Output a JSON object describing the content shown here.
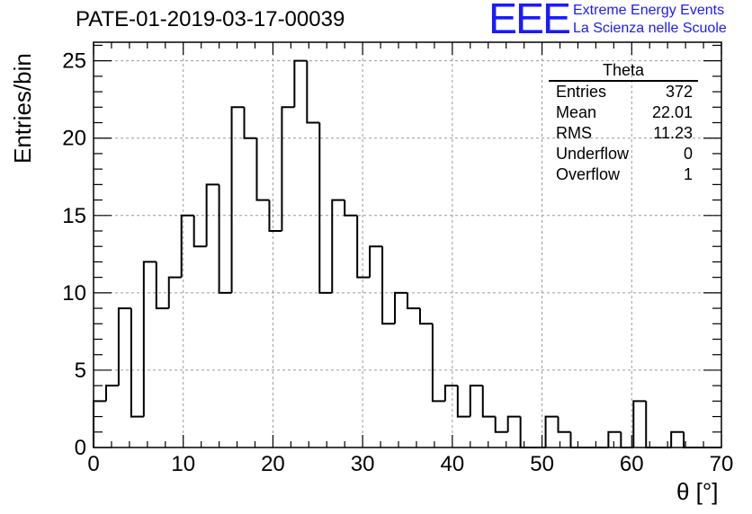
{
  "header": {
    "title": "PATE-01-2019-03-17-00039",
    "logo_mark": "EEE",
    "logo_line1": "Extreme Energy Events",
    "logo_line2": "La Scienza nelle Scuole"
  },
  "stats_box": {
    "title": "Theta",
    "rows": [
      {
        "label": "Entries",
        "value": "372"
      },
      {
        "label": "Mean",
        "value": "22.01"
      },
      {
        "label": "RMS",
        "value": "11.23"
      },
      {
        "label": "Underflow",
        "value": "0"
      },
      {
        "label": "Overflow",
        "value": "1"
      }
    ]
  },
  "chart_data": {
    "type": "bar",
    "style": "step-histogram",
    "title": "PATE-01-2019-03-17-00039",
    "xlabel": "θ [°]",
    "ylabel": "Entries/bin",
    "xlim": [
      0,
      70
    ],
    "ylim": [
      0,
      26.2
    ],
    "grid": true,
    "bin_width": 1.4,
    "bin_edges_start": 0,
    "values": [
      3,
      4,
      9,
      2,
      12,
      9,
      11,
      15,
      13,
      17,
      10,
      22,
      20,
      16,
      14,
      22,
      25,
      21,
      10,
      16,
      15,
      11,
      13,
      8,
      10,
      9,
      8,
      3,
      4,
      2,
      4,
      2,
      1,
      2,
      0,
      0,
      2,
      1,
      0,
      0,
      0,
      1,
      0,
      3,
      0,
      0,
      1,
      0,
      0,
      0
    ],
    "xticks": [
      0,
      10,
      20,
      30,
      40,
      50,
      60,
      70
    ],
    "yticks": [
      0,
      5,
      10,
      15,
      20,
      25
    ],
    "line_color": "#000000",
    "grid_color": "#9a9a9a"
  }
}
